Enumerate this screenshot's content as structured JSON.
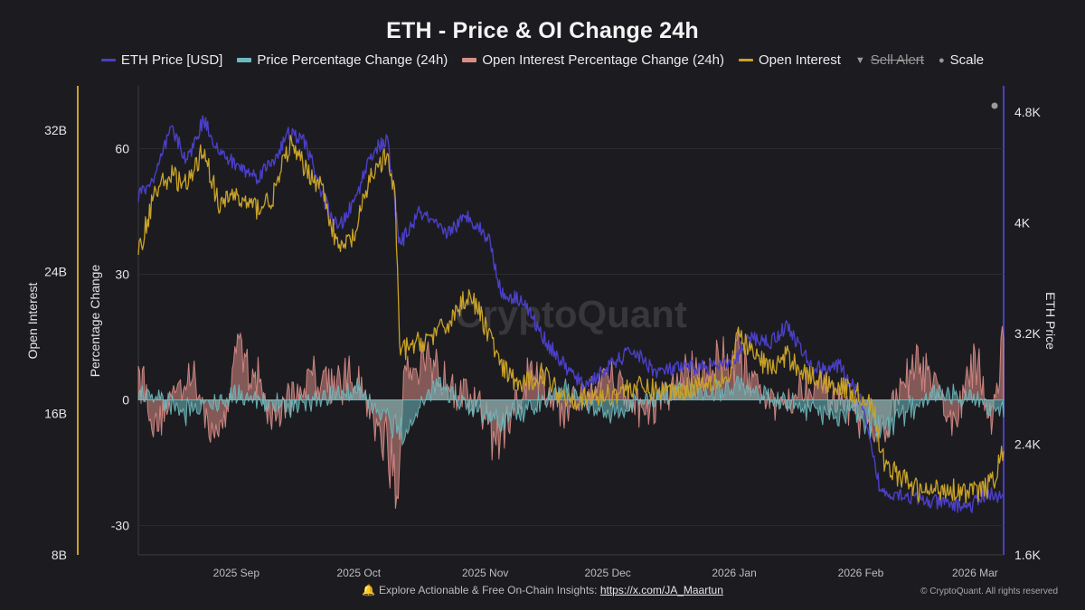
{
  "title": "ETH - Price & OI Change 24h",
  "legend": [
    {
      "label": "ETH Price [USD]",
      "color": "#4b3fc8",
      "kind": "line",
      "icon": "line-swatch-icon"
    },
    {
      "label": "Price Percentage Change (24h)",
      "color": "#6fb9be",
      "kind": "area",
      "icon": "area-swatch-icon"
    },
    {
      "label": "Open Interest Percentage Change (24h)",
      "color": "#d98d87",
      "kind": "area",
      "icon": "area-swatch-icon"
    },
    {
      "label": "Open Interest",
      "color": "#c9a227",
      "kind": "line",
      "icon": "line-swatch-icon"
    },
    {
      "label": "Sell Alert",
      "color": "#9a9a9a",
      "kind": "triangle-down",
      "icon": "triangle-down-icon",
      "disabled": true
    },
    {
      "label": "Scale",
      "color": "#9a9a9a",
      "kind": "dot",
      "icon": "dot-icon"
    }
  ],
  "watermark": "CryptoQuant",
  "footer": {
    "bell_icon": "bell-icon",
    "text": "Explore Actionable & Free On-Chain Insights:",
    "link": "https://x.com/JA_Maartun"
  },
  "copyright": "© CryptoQuant. All rights reserved",
  "colors": {
    "background": "#1c1c20",
    "grid": "#2b2b30",
    "axis": "#c9a227"
  },
  "chart_data": {
    "type": "line",
    "title": "ETH - Price & OI Change 24h",
    "x_range": [
      "2025-08-08",
      "2026-03-08"
    ],
    "x_ticks": [
      "2025 Sep",
      "2025 Oct",
      "2025 Nov",
      "2025 Dec",
      "2026 Jan",
      "2026 Feb",
      "2026 Mar"
    ],
    "axes": {
      "open_interest": {
        "label": "Open Interest",
        "side": "far-left",
        "ticks": [
          "8B",
          "16B",
          "24B",
          "32B"
        ],
        "range": [
          8,
          34.5
        ]
      },
      "percentage": {
        "label": "Percentage Change",
        "side": "left",
        "ticks": [
          "-30",
          "0",
          "30",
          "60"
        ],
        "range": [
          -37,
          75
        ]
      },
      "eth_price": {
        "label": "ETH Price",
        "side": "right",
        "ticks": [
          "1.6K",
          "2.4K",
          "3.2K",
          "4K",
          "4.8K"
        ],
        "range": [
          1600,
          4990
        ]
      }
    },
    "series": [
      {
        "name": "ETH Price [USD]",
        "axis": "eth_price",
        "style": "line",
        "x": [
          "2025-08-08",
          "2025-08-12",
          "2025-08-16",
          "2025-08-20",
          "2025-08-24",
          "2025-08-28",
          "2025-09-02",
          "2025-09-06",
          "2025-09-10",
          "2025-09-14",
          "2025-09-18",
          "2025-09-22",
          "2025-09-26",
          "2025-09-30",
          "2025-10-04",
          "2025-10-08",
          "2025-10-11",
          "2025-10-16",
          "2025-10-22",
          "2025-10-28",
          "2025-11-02",
          "2025-11-05",
          "2025-11-10",
          "2025-11-15",
          "2025-11-20",
          "2025-11-25",
          "2025-12-01",
          "2025-12-07",
          "2025-12-13",
          "2025-12-19",
          "2025-12-25",
          "2025-12-31",
          "2026-01-05",
          "2026-01-10",
          "2026-01-14",
          "2026-01-20",
          "2026-01-27",
          "2026-02-01",
          "2026-02-04",
          "2026-02-06",
          "2026-02-10",
          "2026-02-16",
          "2026-02-22",
          "2026-02-28",
          "2026-03-04",
          "2026-03-08"
        ],
        "values": [
          4200,
          4320,
          4680,
          4450,
          4750,
          4500,
          4400,
          4330,
          4450,
          4650,
          4580,
          4200,
          3950,
          4160,
          4500,
          4600,
          3840,
          4080,
          3920,
          4050,
          3880,
          3480,
          3450,
          3180,
          2980,
          2820,
          2950,
          3080,
          2920,
          2950,
          2960,
          2970,
          3170,
          3140,
          3260,
          2950,
          2960,
          2720,
          2300,
          2050,
          2050,
          1990,
          1970,
          1950,
          2050,
          2000
        ]
      },
      {
        "name": "Open Interest",
        "axis": "open_interest",
        "style": "line",
        "x": [
          "2025-08-08",
          "2025-08-12",
          "2025-08-16",
          "2025-08-20",
          "2025-08-24",
          "2025-08-28",
          "2025-08-31",
          "2025-09-02",
          "2025-09-06",
          "2025-09-10",
          "2025-09-14",
          "2025-09-18",
          "2025-09-22",
          "2025-09-26",
          "2025-09-30",
          "2025-10-04",
          "2025-10-08",
          "2025-10-10",
          "2025-10-11",
          "2025-10-16",
          "2025-10-22",
          "2025-10-28",
          "2025-11-02",
          "2025-11-05",
          "2025-11-10",
          "2025-11-15",
          "2025-11-20",
          "2025-11-25",
          "2025-12-01",
          "2025-12-07",
          "2025-12-13",
          "2025-12-19",
          "2025-12-25",
          "2025-12-31",
          "2026-01-02",
          "2026-01-05",
          "2026-01-10",
          "2026-01-14",
          "2026-01-20",
          "2026-01-27",
          "2026-02-01",
          "2026-02-04",
          "2026-02-06",
          "2026-02-10",
          "2026-02-16",
          "2026-02-22",
          "2026-02-28",
          "2026-03-04",
          "2026-03-06",
          "2026-03-08"
        ],
        "values": [
          25,
          28.5,
          29.5,
          28.8,
          31,
          27.5,
          28.5,
          28,
          27.6,
          28.2,
          31.2,
          29.8,
          28.8,
          25.2,
          26,
          29.5,
          30.5,
          28,
          19.5,
          20,
          20.8,
          22.8,
          20.5,
          18.5,
          17.5,
          18.3,
          17,
          16.8,
          17,
          17.5,
          17.3,
          17.3,
          17.8,
          18,
          20.5,
          19.5,
          18.5,
          19.2,
          18,
          17.5,
          17,
          16.5,
          13.5,
          12.5,
          11.5,
          11.8,
          11.5,
          11.8,
          12.5,
          14
        ]
      },
      {
        "name": "Price Percentage Change (24h)",
        "axis": "percentage",
        "style": "area-oscillator",
        "x": [
          "2025-08-08",
          "2025-08-20",
          "2025-09-02",
          "2025-09-14",
          "2025-10-01",
          "2025-10-11",
          "2025-10-20",
          "2025-11-04",
          "2025-11-20",
          "2025-12-01",
          "2025-12-15",
          "2026-01-02",
          "2026-01-20",
          "2026-02-01",
          "2026-02-06",
          "2026-02-20",
          "2026-03-08"
        ],
        "values": [
          3,
          -4,
          2,
          -3,
          4,
          -12,
          5,
          -8,
          3,
          -5,
          2,
          4,
          -3,
          -6,
          -10,
          3,
          -3
        ]
      },
      {
        "name": "Open Interest Percentage Change (24h)",
        "axis": "percentage",
        "style": "area-oscillator",
        "x": [
          "2025-08-08",
          "2025-08-12",
          "2025-08-20",
          "2025-08-28",
          "2025-09-02",
          "2025-09-10",
          "2025-09-20",
          "2025-10-01",
          "2025-10-06",
          "2025-10-11",
          "2025-10-12",
          "2025-10-20",
          "2025-11-01",
          "2025-11-04",
          "2025-11-12",
          "2025-11-20",
          "2025-12-01",
          "2025-12-10",
          "2025-12-20",
          "2026-01-02",
          "2026-01-10",
          "2026-01-20",
          "2026-02-01",
          "2026-02-06",
          "2026-02-15",
          "2026-02-24",
          "2026-03-01",
          "2026-03-05",
          "2026-03-08"
        ],
        "values": [
          12,
          -8,
          10,
          -14,
          20,
          -6,
          9,
          5,
          -10,
          -31,
          12,
          10,
          -5,
          -16,
          8,
          -4,
          10,
          -5,
          8,
          15,
          -3,
          6,
          -8,
          -9,
          12,
          -7,
          13,
          -6,
          18
        ]
      }
    ]
  }
}
